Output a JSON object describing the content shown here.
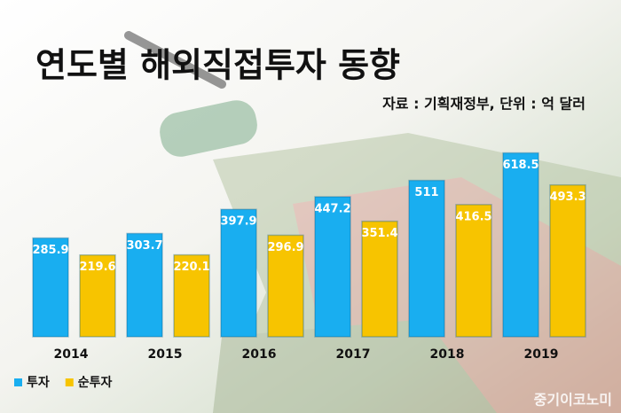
{
  "chart_data": {
    "type": "bar",
    "title": "연도별 해외직접투자 동향",
    "subtitle": "자료 : 기획재정부, 단위 : 억 달러",
    "watermark": "중기이코노미",
    "categories": [
      "2014",
      "2015",
      "2016",
      "2017",
      "2018",
      "2019"
    ],
    "series": [
      {
        "name": "투자",
        "color": "#19aef0",
        "values": [
          285.9,
          303.7,
          397.9,
          447.2,
          511,
          618.5
        ]
      },
      {
        "name": "순투자",
        "color": "#f7c400",
        "values": [
          219.6,
          220.1,
          296.9,
          351.4,
          416.5,
          493.3
        ]
      }
    ],
    "ylim": [
      -100,
      700
    ]
  }
}
